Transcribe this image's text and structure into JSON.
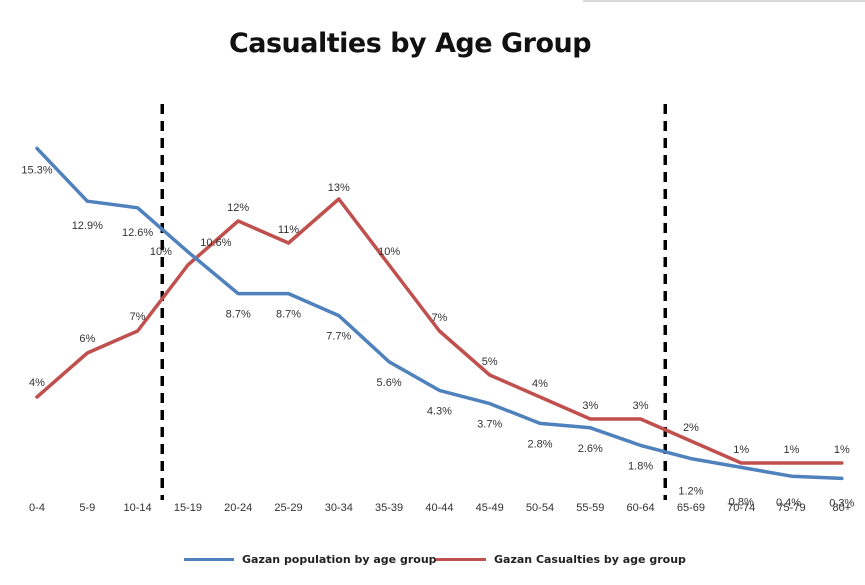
{
  "chart_data": {
    "type": "line",
    "title": "Casualties by Age Group",
    "xlabel": "",
    "ylabel": "",
    "ylim": [
      0,
      16.5
    ],
    "grid": false,
    "legend_position": "bottom",
    "categories": [
      "0-4",
      "5-9",
      "10-14",
      "15-19",
      "20-24",
      "25-29",
      "30-34",
      "35-39",
      "40-44",
      "45-49",
      "50-54",
      "55-59",
      "60-64",
      "65-69",
      "70-74",
      "75-79",
      "80+"
    ],
    "series": [
      {
        "name": "Gazan population by age group",
        "color": "#4f81bd",
        "values": [
          15.3,
          12.9,
          12.6,
          10.6,
          8.7,
          8.7,
          7.7,
          5.6,
          4.3,
          3.7,
          2.8,
          2.6,
          1.8,
          1.2,
          0.8,
          0.4,
          0.3
        ],
        "labels": [
          "15.3%",
          "12.9%",
          "12.6%",
          "10.6%",
          "8.7%",
          "8.7%",
          "7.7%",
          "5.6%",
          "4.3%",
          "3.7%",
          "2.8%",
          "2.6%",
          "1.8%",
          "1.2%",
          "0.8%",
          "0.4%",
          "0.3%"
        ]
      },
      {
        "name": "Gazan Casualties by age group",
        "color": "#c0504d",
        "values": [
          4,
          6,
          7,
          10,
          12,
          11,
          13,
          10,
          7,
          5,
          4,
          3,
          3,
          2,
          1,
          1,
          1
        ],
        "labels": [
          "4%",
          "6%",
          "7%",
          "10%",
          "12%",
          "11%",
          "13%",
          "10%",
          "7%",
          "5%",
          "4%",
          "3%",
          "3%",
          "2%",
          "1%",
          "1%",
          "1%"
        ]
      }
    ],
    "annotations": [
      {
        "type": "vertical-dashed-line",
        "between_categories": [
          "10-14",
          "15-19"
        ]
      },
      {
        "type": "vertical-dashed-line",
        "between_categories": [
          "60-64",
          "65-69"
        ]
      }
    ]
  }
}
